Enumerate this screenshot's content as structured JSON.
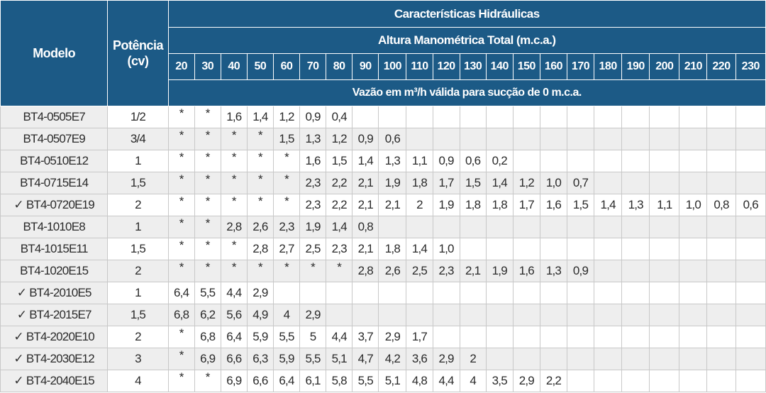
{
  "header": {
    "model_label": "Modelo",
    "power_label_line1": "Potência",
    "power_label_line2": "(cv)",
    "group_title": "Características Hidráulicas",
    "subgroup_title": "Altura Manométrica Total (m.c.a.)",
    "note": "Vazão em m³/h válida para sucção de 0 m.c.a.",
    "heights": [
      "20",
      "30",
      "40",
      "50",
      "60",
      "70",
      "80",
      "90",
      "100",
      "110",
      "120",
      "130",
      "140",
      "150",
      "160",
      "170",
      "180",
      "190",
      "200",
      "210",
      "220",
      "230"
    ]
  },
  "colors": {
    "header_bg": "#1c5a86",
    "row_alt_bg": "#eeeeee",
    "row_bg": "#ffffff"
  },
  "rows": [
    {
      "model": "BT4-0505E7",
      "checked": false,
      "power": "1/2",
      "values": [
        "*",
        "*",
        "1,6",
        "1,4",
        "1,2",
        "0,9",
        "0,4",
        "",
        "",
        "",
        "",
        "",
        "",
        "",
        "",
        "",
        "",
        "",
        "",
        "",
        "",
        ""
      ]
    },
    {
      "model": "BT4-0507E9",
      "checked": false,
      "power": "3/4",
      "values": [
        "*",
        "*",
        "*",
        "*",
        "1,5",
        "1,3",
        "1,2",
        "0,9",
        "0,6",
        "",
        "",
        "",
        "",
        "",
        "",
        "",
        "",
        "",
        "",
        "",
        "",
        ""
      ]
    },
    {
      "model": "BT4-0510E12",
      "checked": false,
      "power": "1",
      "values": [
        "*",
        "*",
        "*",
        "*",
        "*",
        "1,6",
        "1,5",
        "1,4",
        "1,3",
        "1,1",
        "0,9",
        "0,6",
        "0,2",
        "",
        "",
        "",
        "",
        "",
        "",
        "",
        "",
        ""
      ]
    },
    {
      "model": "BT4-0715E14",
      "checked": false,
      "power": "1,5",
      "values": [
        "*",
        "*",
        "*",
        "*",
        "*",
        "2,3",
        "2,2",
        "2,1",
        "1,9",
        "1,8",
        "1,7",
        "1,5",
        "1,4",
        "1,2",
        "1,0",
        "0,7",
        "",
        "",
        "",
        "",
        "",
        ""
      ]
    },
    {
      "model": "BT4-0720E19",
      "checked": true,
      "power": "2",
      "values": [
        "*",
        "*",
        "*",
        "*",
        "*",
        "2,3",
        "2,2",
        "2,1",
        "2,1",
        "2",
        "1,9",
        "1,8",
        "1,8",
        "1,7",
        "1,6",
        "1,5",
        "1,4",
        "1,3",
        "1,1",
        "1,0",
        "0,8",
        "0,6"
      ]
    },
    {
      "model": "BT4-1010E8",
      "checked": false,
      "power": "1",
      "values": [
        "*",
        "*",
        "2,8",
        "2,6",
        "2,3",
        "1,9",
        "1,4",
        "0,8",
        "",
        "",
        "",
        "",
        "",
        "",
        "",
        "",
        "",
        "",
        "",
        "",
        "",
        ""
      ]
    },
    {
      "model": "BT4-1015E11",
      "checked": false,
      "power": "1,5",
      "values": [
        "*",
        "*",
        "*",
        "2,8",
        "2,7",
        "2,5",
        "2,3",
        "2,1",
        "1,8",
        "1,4",
        "1,0",
        "",
        "",
        "",
        "",
        "",
        "",
        "",
        "",
        "",
        "",
        ""
      ]
    },
    {
      "model": "BT4-1020E15",
      "checked": false,
      "power": "2",
      "values": [
        "*",
        "*",
        "*",
        "*",
        "*",
        "*",
        "*",
        "2,8",
        "2,6",
        "2,5",
        "2,3",
        "2,1",
        "1,9",
        "1,6",
        "1,3",
        "0,9",
        "",
        "",
        "",
        "",
        "",
        ""
      ]
    },
    {
      "model": "BT4-2010E5",
      "checked": true,
      "power": "1",
      "values": [
        "6,4",
        "5,5",
        "4,4",
        "2,9",
        "",
        "",
        "",
        "",
        "",
        "",
        "",
        "",
        "",
        "",
        "",
        "",
        "",
        "",
        "",
        "",
        "",
        ""
      ]
    },
    {
      "model": "BT4-2015E7",
      "checked": true,
      "power": "1,5",
      "values": [
        "6,8",
        "6,2",
        "5,6",
        "4,9",
        "4",
        "2,9",
        "",
        "",
        "",
        "",
        "",
        "",
        "",
        "",
        "",
        "",
        "",
        "",
        "",
        "",
        "",
        ""
      ]
    },
    {
      "model": "BT4-2020E10",
      "checked": true,
      "power": "2",
      "values": [
        "*",
        "6,8",
        "6,4",
        "5,9",
        "5,5",
        "5",
        "4,4",
        "3,7",
        "2,9",
        "1,7",
        "",
        "",
        "",
        "",
        "",
        "",
        "",
        "",
        "",
        "",
        "",
        ""
      ]
    },
    {
      "model": "BT4-2030E12",
      "checked": true,
      "power": "3",
      "values": [
        "*",
        "6,9",
        "6,6",
        "6,3",
        "5,9",
        "5,5",
        "5,1",
        "4,7",
        "4,2",
        "3,6",
        "2,9",
        "2",
        "",
        "",
        "",
        "",
        "",
        "",
        "",
        "",
        "",
        ""
      ]
    },
    {
      "model": "BT4-2040E15",
      "checked": true,
      "power": "4",
      "values": [
        "*",
        "*",
        "6,9",
        "6,6",
        "6,4",
        "6,1",
        "5,8",
        "5,5",
        "5,1",
        "4,8",
        "4,4",
        "4",
        "3,5",
        "2,9",
        "2,2",
        "",
        "",
        "",
        "",
        "",
        "",
        ""
      ]
    }
  ],
  "check_glyph": "✓"
}
